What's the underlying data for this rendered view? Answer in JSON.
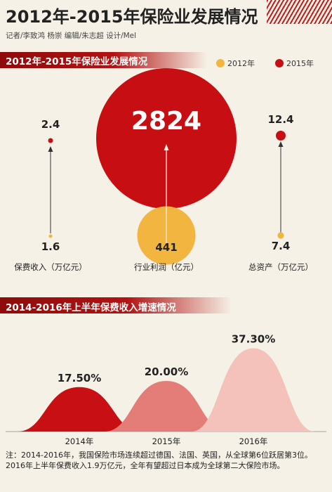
{
  "header": {
    "title": "2012年-2015年保险业发展情况",
    "credits": "记者/李致鸿 杨崇  编辑/朱志超  设计/Mel"
  },
  "section1": {
    "title": "2012年-2015年保险业发展情况",
    "legend": [
      {
        "label": "2012年",
        "color": "#f2b540"
      },
      {
        "label": "2015年",
        "color": "#c70f13"
      }
    ]
  },
  "section2": {
    "title": "2014-2016年上半年保费收入增速情况"
  },
  "chart_data": [
    {
      "type": "bubble",
      "title": "2012年-2015年保险业发展情况",
      "series": [
        {
          "name": "2012年",
          "values": [
            1.6,
            441,
            7.4
          ]
        },
        {
          "name": "2015年",
          "values": [
            2.4,
            2824,
            12.4
          ]
        }
      ],
      "categories": [
        "保费收入（万亿元）",
        "行业利润（亿元）",
        "总资产（万亿元）"
      ],
      "value_labels": {
        "2012": [
          "1.6",
          "441",
          "7.4"
        ],
        "2015": [
          "2.4",
          "2824",
          "12.4"
        ]
      }
    },
    {
      "type": "area",
      "title": "2014-2016年上半年保费收入增速情况",
      "categories": [
        "2014年",
        "2015年",
        "2016年"
      ],
      "values": [
        17.5,
        20.0,
        37.3
      ],
      "value_labels": [
        "17.50%",
        "20.00%",
        "37.30%"
      ],
      "colors": [
        "#c80f14",
        "#e47c78",
        "#f4c1bb"
      ]
    }
  ],
  "notes": [
    "注：2014-2016年，我国保险市场连续超过德国、法国、英国，从全球第6位跃居第3位。",
    "2016年上半年保费收入1.9万亿元，全年有望超过日本成为全球第二大保险市场。"
  ]
}
